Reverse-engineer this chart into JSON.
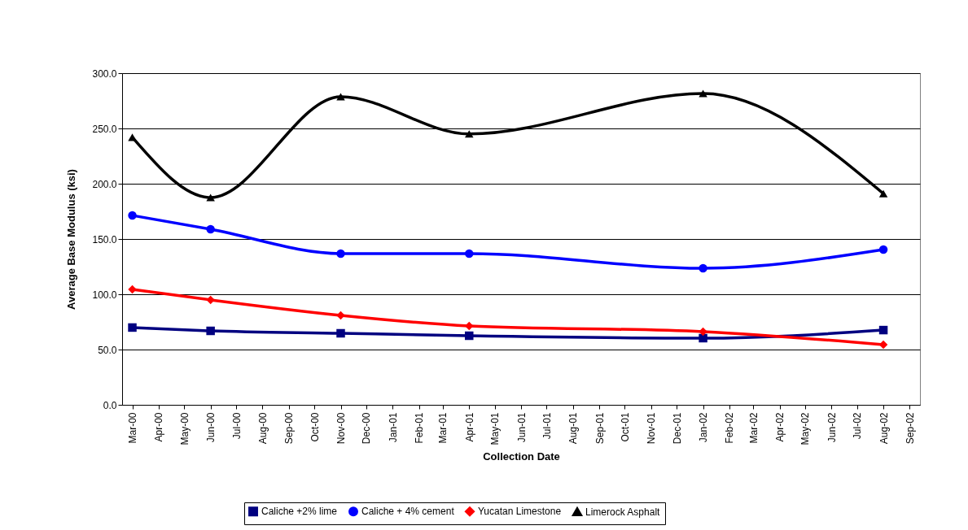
{
  "chart_data": {
    "type": "line",
    "xlabel": "Collection Date",
    "ylabel": "Average Base Modulus (ksi)",
    "x": [
      "2000-03",
      "2000-06",
      "2000-11",
      "2001-04",
      "2002-01",
      "2002-08"
    ],
    "series": [
      {
        "name": "Caliche +2% lime",
        "color": "#000080",
        "marker": "square",
        "values": [
          69.9,
          66.9,
          64.7,
          62.5,
          60.3,
          67.6
        ]
      },
      {
        "name": "Caliche + 4% cement",
        "color": "#0000ff",
        "marker": "circle",
        "values": [
          171.3,
          158.8,
          136.8,
          136.8,
          123.5,
          140.4
        ]
      },
      {
        "name": "Yucatan Limestone",
        "color": "#ff0000",
        "marker": "diamond",
        "values": [
          104.4,
          94.9,
          80.9,
          71.3,
          66.2,
          54.4
        ]
      },
      {
        "name": "Limerock Asphalt",
        "color": "#000000",
        "marker": "triangle",
        "values": [
          242,
          187.5,
          278.7,
          245,
          281.6,
          191
        ]
      }
    ],
    "xlim": [
      "2000-02-18",
      "2002-09-13"
    ],
    "xticks": [
      {
        "value": "2000-03",
        "label": "Mar-00"
      },
      {
        "value": "2000-04",
        "label": "Apr-00"
      },
      {
        "value": "2000-05",
        "label": "May-00"
      },
      {
        "value": "2000-06",
        "label": "Jun-00"
      },
      {
        "value": "2000-07",
        "label": "Jul-00"
      },
      {
        "value": "2000-08",
        "label": "Aug-00"
      },
      {
        "value": "2000-09",
        "label": "Sep-00"
      },
      {
        "value": "2000-10",
        "label": "Oct-00"
      },
      {
        "value": "2000-11",
        "label": "Nov-00"
      },
      {
        "value": "2000-12",
        "label": "Dec-00"
      },
      {
        "value": "2001-01",
        "label": "Jan-01"
      },
      {
        "value": "2001-02",
        "label": "Feb-01"
      },
      {
        "value": "2001-03",
        "label": "Mar-01"
      },
      {
        "value": "2001-04",
        "label": "Apr-01"
      },
      {
        "value": "2001-05",
        "label": "May-01"
      },
      {
        "value": "2001-06",
        "label": "Jun-01"
      },
      {
        "value": "2001-07",
        "label": "Jul-01"
      },
      {
        "value": "2001-08",
        "label": "Aug-01"
      },
      {
        "value": "2001-09",
        "label": "Sep-01"
      },
      {
        "value": "2001-10",
        "label": "Oct-01"
      },
      {
        "value": "2001-11",
        "label": "Nov-01"
      },
      {
        "value": "2001-12",
        "label": "Dec-01"
      },
      {
        "value": "2002-01",
        "label": "Jan-02"
      },
      {
        "value": "2002-02",
        "label": "Feb-02"
      },
      {
        "value": "2002-03",
        "label": "Mar-02"
      },
      {
        "value": "2002-04",
        "label": "Apr-02"
      },
      {
        "value": "2002-05",
        "label": "May-02"
      },
      {
        "value": "2002-06",
        "label": "Jun-02"
      },
      {
        "value": "2002-07",
        "label": "Jul-02"
      },
      {
        "value": "2002-08",
        "label": "Aug-02"
      },
      {
        "value": "2002-09",
        "label": "Sep-02"
      }
    ],
    "ylim": [
      0,
      300
    ],
    "yticks": [
      {
        "value": 0,
        "label": "0.0"
      },
      {
        "value": 50,
        "label": "50.0"
      },
      {
        "value": 100,
        "label": "100.0"
      },
      {
        "value": 150,
        "label": "150.0"
      },
      {
        "value": 200,
        "label": "200.0"
      },
      {
        "value": 250,
        "label": "250.0"
      },
      {
        "value": 300,
        "label": "300.0"
      }
    ],
    "grid": "y",
    "legend": "bottom",
    "line_style": "solid"
  }
}
